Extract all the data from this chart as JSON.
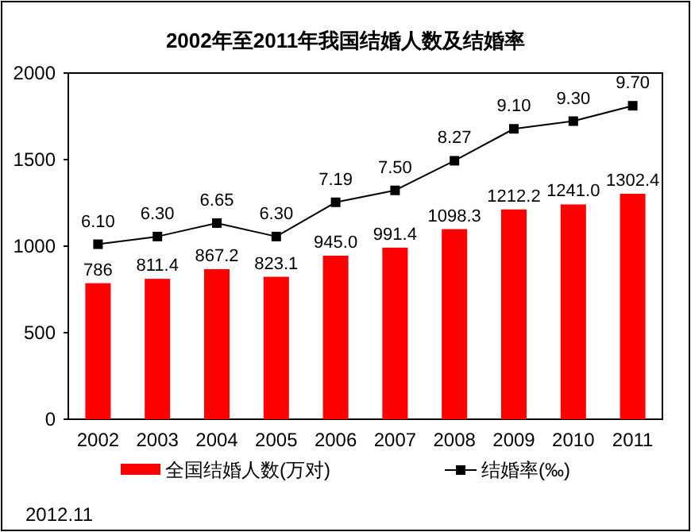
{
  "chart_data": {
    "type": "bar",
    "title": "2002年至2011年我国结婚人数及结婚率",
    "categories": [
      "2002",
      "2003",
      "2004",
      "2005",
      "2006",
      "2007",
      "2008",
      "2009",
      "2010",
      "2011"
    ],
    "series": [
      {
        "name": "全国结婚人数(万对)",
        "color": "#ff0000",
        "values": [
          786,
          811.4,
          867.2,
          823.1,
          945.0,
          991.4,
          1098.3,
          1212.2,
          1241.0,
          1302.4
        ],
        "value_labels": [
          "786",
          "811.4",
          "867.2",
          "823.1",
          "945.0",
          "991.4",
          "1098.3",
          "1212.2",
          "1241.0",
          "1302.4"
        ]
      },
      {
        "name": "结婚率(‰)",
        "type": "line",
        "axis": "y2",
        "color": "#000000",
        "marker": "square",
        "values": [
          6.1,
          6.3,
          6.65,
          6.3,
          7.19,
          7.5,
          8.27,
          9.1,
          9.3,
          9.7
        ],
        "value_labels": [
          "6.10",
          "6.30",
          "6.65",
          "6.30",
          "7.19",
          "7.50",
          "8.27",
          "9.10",
          "9.30",
          "9.70"
        ]
      }
    ],
    "ylim": [
      0,
      2000
    ],
    "yticks": [
      0,
      500,
      1000,
      1500,
      2000
    ],
    "y2lim": [
      1.55,
      10.55
    ],
    "legend": "bottom",
    "grid": false,
    "annotations": [
      "2012.11"
    ]
  }
}
